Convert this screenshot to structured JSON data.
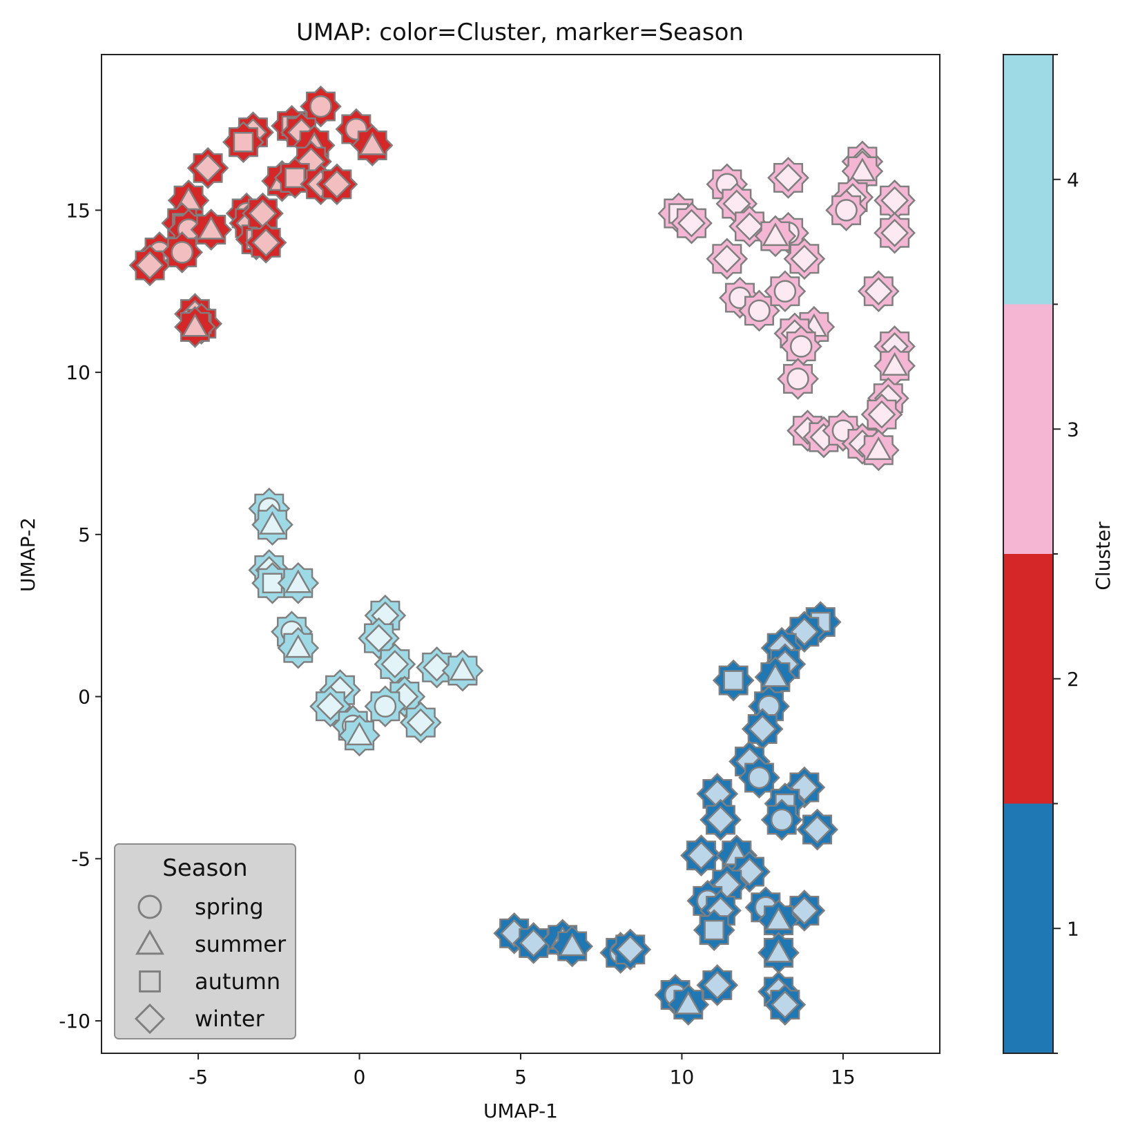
{
  "chart_data": {
    "type": "scatter",
    "title": "UMAP: color=Cluster, marker=Season",
    "xlabel": "UMAP-1",
    "ylabel": "UMAP-2",
    "xlim": [
      -8,
      18
    ],
    "ylim": [
      -11,
      19.8
    ],
    "x_ticks": [
      -5,
      0,
      5,
      10,
      15
    ],
    "y_ticks": [
      -10,
      -5,
      0,
      5,
      10,
      15
    ],
    "grid": false,
    "legend": {
      "title": "Season",
      "placement": "lower-left",
      "entries": [
        {
          "label": "spring",
          "marker": "circle"
        },
        {
          "label": "summer",
          "marker": "triangle"
        },
        {
          "label": "autumn",
          "marker": "square"
        },
        {
          "label": "winter",
          "marker": "diamond"
        }
      ]
    },
    "colorbar": {
      "label": "Cluster",
      "ticks": [
        "1",
        "2",
        "3",
        "4"
      ],
      "colors": [
        "#1f77b4",
        "#d62728",
        "#f4b6d2",
        "#9edae5"
      ]
    },
    "clusters": [
      {
        "cluster": 2,
        "color": "#d62728",
        "points": [
          {
            "x": -1.2,
            "y": 18.2,
            "season": "spring"
          },
          {
            "x": -0.1,
            "y": 17.5,
            "season": "spring"
          },
          {
            "x": 0.4,
            "y": 17.0,
            "season": "summer"
          },
          {
            "x": -3.3,
            "y": 17.4,
            "season": "winter"
          },
          {
            "x": -3.6,
            "y": 17.1,
            "season": "autumn"
          },
          {
            "x": -2.1,
            "y": 17.6,
            "season": "autumn"
          },
          {
            "x": -1.8,
            "y": 17.4,
            "season": "winter"
          },
          {
            "x": -1.4,
            "y": 17.0,
            "season": "summer"
          },
          {
            "x": -1.5,
            "y": 16.5,
            "season": "winter"
          },
          {
            "x": -4.7,
            "y": 16.3,
            "season": "winter"
          },
          {
            "x": -2.4,
            "y": 15.9,
            "season": "summer"
          },
          {
            "x": -2.0,
            "y": 16.0,
            "season": "autumn"
          },
          {
            "x": -1.2,
            "y": 15.8,
            "season": "winter"
          },
          {
            "x": -0.7,
            "y": 15.8,
            "season": "winter"
          },
          {
            "x": -5.3,
            "y": 15.3,
            "season": "summer"
          },
          {
            "x": -5.5,
            "y": 14.6,
            "season": "autumn"
          },
          {
            "x": -5.3,
            "y": 14.4,
            "season": "spring"
          },
          {
            "x": -4.6,
            "y": 14.4,
            "season": "summer"
          },
          {
            "x": -3.5,
            "y": 14.9,
            "season": "spring"
          },
          {
            "x": -3.4,
            "y": 14.6,
            "season": "winter"
          },
          {
            "x": -3.2,
            "y": 14.1,
            "season": "autumn"
          },
          {
            "x": -3.0,
            "y": 14.9,
            "season": "winter"
          },
          {
            "x": -2.9,
            "y": 14.0,
            "season": "winter"
          },
          {
            "x": -6.2,
            "y": 13.7,
            "season": "spring"
          },
          {
            "x": -6.5,
            "y": 13.3,
            "season": "winter"
          },
          {
            "x": -5.5,
            "y": 13.7,
            "season": "spring"
          },
          {
            "x": -5.1,
            "y": 11.8,
            "season": "winter"
          },
          {
            "x": -4.9,
            "y": 11.5,
            "season": "autumn"
          },
          {
            "x": -5.1,
            "y": 11.4,
            "season": "summer"
          }
        ]
      },
      {
        "cluster": 3,
        "color": "#f4b6d2",
        "points": [
          {
            "x": 13.3,
            "y": 16.0,
            "season": "winter"
          },
          {
            "x": 15.6,
            "y": 16.5,
            "season": "winter"
          },
          {
            "x": 15.6,
            "y": 16.2,
            "season": "summer"
          },
          {
            "x": 11.4,
            "y": 15.8,
            "season": "spring"
          },
          {
            "x": 11.7,
            "y": 15.2,
            "season": "winter"
          },
          {
            "x": 15.3,
            "y": 15.4,
            "season": "winter"
          },
          {
            "x": 16.6,
            "y": 15.3,
            "season": "winter"
          },
          {
            "x": 15.1,
            "y": 15.0,
            "season": "spring"
          },
          {
            "x": 9.9,
            "y": 14.9,
            "season": "autumn"
          },
          {
            "x": 10.3,
            "y": 14.6,
            "season": "winter"
          },
          {
            "x": 12.1,
            "y": 14.5,
            "season": "winter"
          },
          {
            "x": 13.3,
            "y": 14.3,
            "season": "spring"
          },
          {
            "x": 12.9,
            "y": 14.2,
            "season": "summer"
          },
          {
            "x": 16.6,
            "y": 14.3,
            "season": "winter"
          },
          {
            "x": 11.4,
            "y": 13.5,
            "season": "winter"
          },
          {
            "x": 13.8,
            "y": 13.5,
            "season": "winter"
          },
          {
            "x": 16.1,
            "y": 12.5,
            "season": "winter"
          },
          {
            "x": 11.8,
            "y": 12.3,
            "season": "spring"
          },
          {
            "x": 12.4,
            "y": 11.9,
            "season": "spring"
          },
          {
            "x": 13.2,
            "y": 12.5,
            "season": "spring"
          },
          {
            "x": 14.1,
            "y": 11.4,
            "season": "summer"
          },
          {
            "x": 13.5,
            "y": 11.2,
            "season": "winter"
          },
          {
            "x": 13.7,
            "y": 10.8,
            "season": "spring"
          },
          {
            "x": 16.6,
            "y": 10.8,
            "season": "winter"
          },
          {
            "x": 16.6,
            "y": 10.2,
            "season": "summer"
          },
          {
            "x": 13.6,
            "y": 9.8,
            "season": "spring"
          },
          {
            "x": 16.4,
            "y": 9.2,
            "season": "winter"
          },
          {
            "x": 16.2,
            "y": 8.7,
            "season": "winter"
          },
          {
            "x": 13.9,
            "y": 8.2,
            "season": "winter"
          },
          {
            "x": 14.4,
            "y": 8.0,
            "season": "winter"
          },
          {
            "x": 15.0,
            "y": 8.2,
            "season": "spring"
          },
          {
            "x": 15.6,
            "y": 7.8,
            "season": "winter"
          },
          {
            "x": 16.1,
            "y": 7.6,
            "season": "summer"
          }
        ]
      },
      {
        "cluster": 4,
        "color": "#9edae5",
        "points": [
          {
            "x": -2.8,
            "y": 5.8,
            "season": "spring"
          },
          {
            "x": -2.7,
            "y": 5.3,
            "season": "summer"
          },
          {
            "x": -2.8,
            "y": 3.9,
            "season": "winter"
          },
          {
            "x": -2.7,
            "y": 3.5,
            "season": "autumn"
          },
          {
            "x": -1.9,
            "y": 3.5,
            "season": "summer"
          },
          {
            "x": -2.1,
            "y": 2.0,
            "season": "spring"
          },
          {
            "x": -1.9,
            "y": 1.5,
            "season": "summer"
          },
          {
            "x": 0.8,
            "y": 2.5,
            "season": "winter"
          },
          {
            "x": 0.6,
            "y": 1.8,
            "season": "winter"
          },
          {
            "x": 1.1,
            "y": 1.0,
            "season": "winter"
          },
          {
            "x": 2.4,
            "y": 0.9,
            "season": "winter"
          },
          {
            "x": 3.2,
            "y": 0.8,
            "season": "summer"
          },
          {
            "x": -0.6,
            "y": 0.2,
            "season": "winter"
          },
          {
            "x": -0.9,
            "y": -0.3,
            "season": "winter"
          },
          {
            "x": 1.4,
            "y": 0.0,
            "season": "winter"
          },
          {
            "x": 0.8,
            "y": -0.3,
            "season": "spring"
          },
          {
            "x": 1.9,
            "y": -0.8,
            "season": "winter"
          },
          {
            "x": -0.2,
            "y": -0.9,
            "season": "spring"
          },
          {
            "x": 0.0,
            "y": -1.2,
            "season": "summer"
          }
        ]
      },
      {
        "cluster": 1,
        "color": "#1f77b4",
        "points": [
          {
            "x": 14.3,
            "y": 2.3,
            "season": "autumn"
          },
          {
            "x": 13.8,
            "y": 2.0,
            "season": "winter"
          },
          {
            "x": 13.1,
            "y": 1.5,
            "season": "diamond-winter"
          },
          {
            "x": 13.2,
            "y": 1.0,
            "season": "winter"
          },
          {
            "x": 11.6,
            "y": 0.5,
            "season": "autumn"
          },
          {
            "x": 12.9,
            "y": 0.6,
            "season": "summer"
          },
          {
            "x": 12.7,
            "y": -0.3,
            "season": "spring"
          },
          {
            "x": 12.5,
            "y": -1.0,
            "season": "winter"
          },
          {
            "x": 12.1,
            "y": -2.0,
            "season": "winter"
          },
          {
            "x": 12.4,
            "y": -2.5,
            "season": "spring"
          },
          {
            "x": 11.1,
            "y": -3.0,
            "season": "winter"
          },
          {
            "x": 13.8,
            "y": -2.8,
            "season": "winter"
          },
          {
            "x": 13.2,
            "y": -3.3,
            "season": "autumn"
          },
          {
            "x": 11.2,
            "y": -3.8,
            "season": "winter"
          },
          {
            "x": 13.1,
            "y": -3.8,
            "season": "spring"
          },
          {
            "x": 14.2,
            "y": -4.1,
            "season": "winter"
          },
          {
            "x": 10.6,
            "y": -4.9,
            "season": "winter"
          },
          {
            "x": 11.7,
            "y": -4.9,
            "season": "summer"
          },
          {
            "x": 12.1,
            "y": -5.4,
            "season": "winter"
          },
          {
            "x": 11.4,
            "y": -5.8,
            "season": "winter"
          },
          {
            "x": 10.8,
            "y": -6.3,
            "season": "spring"
          },
          {
            "x": 11.2,
            "y": -6.6,
            "season": "winter"
          },
          {
            "x": 12.6,
            "y": -6.5,
            "season": "spring"
          },
          {
            "x": 13.8,
            "y": -6.6,
            "season": "winter"
          },
          {
            "x": 13.0,
            "y": -6.9,
            "season": "summer"
          },
          {
            "x": 11.0,
            "y": -7.2,
            "season": "autumn"
          },
          {
            "x": 13.0,
            "y": -7.9,
            "season": "summer"
          },
          {
            "x": 4.8,
            "y": -7.3,
            "season": "winter"
          },
          {
            "x": 5.4,
            "y": -7.6,
            "season": "winter"
          },
          {
            "x": 6.3,
            "y": -7.5,
            "season": "summer"
          },
          {
            "x": 6.6,
            "y": -7.7,
            "season": "summer"
          },
          {
            "x": 8.1,
            "y": -7.9,
            "season": "spring"
          },
          {
            "x": 8.4,
            "y": -7.8,
            "season": "winter"
          },
          {
            "x": 9.8,
            "y": -9.2,
            "season": "spring"
          },
          {
            "x": 10.2,
            "y": -9.5,
            "season": "summer"
          },
          {
            "x": 11.1,
            "y": -8.9,
            "season": "winter"
          },
          {
            "x": 13.0,
            "y": -9.1,
            "season": "winter"
          },
          {
            "x": 13.2,
            "y": -9.5,
            "season": "winter"
          }
        ]
      }
    ]
  }
}
